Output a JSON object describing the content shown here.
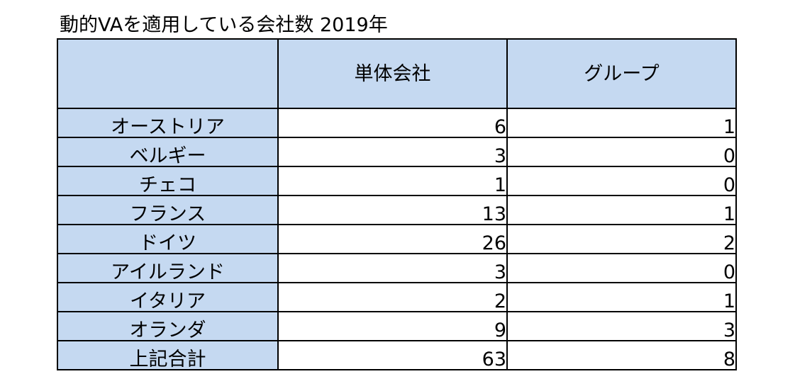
{
  "title": "動的VAを適用している会社数  2019年",
  "table": {
    "headers": [
      "",
      "単体会社",
      "グループ"
    ],
    "rows": [
      {
        "country": "オーストリア",
        "single": "6",
        "group": "1"
      },
      {
        "country": "ベルギー",
        "single": "3",
        "group": "0"
      },
      {
        "country": "チェコ",
        "single": "1",
        "group": "0"
      },
      {
        "country": "フランス",
        "single": "13",
        "group": "1"
      },
      {
        "country": "ドイツ",
        "single": "26",
        "group": "2"
      },
      {
        "country": "アイルランド",
        "single": "3",
        "group": "0"
      },
      {
        "country": "イタリア",
        "single": "2",
        "group": "1"
      },
      {
        "country": "オランダ",
        "single": "9",
        "group": "3"
      },
      {
        "country": "上記合計",
        "single": "63",
        "group": "8"
      }
    ]
  },
  "colors": {
    "header_fill": "#c5d9f1",
    "border": "#000000",
    "cell_fill": "#ffffff"
  },
  "chart_data": {
    "type": "table",
    "title": "動的VAを適用している会社数  2019年",
    "columns": [
      "単体会社",
      "グループ"
    ],
    "categories": [
      "オーストリア",
      "ベルギー",
      "チェコ",
      "フランス",
      "ドイツ",
      "アイルランド",
      "イタリア",
      "オランダ",
      "上記合計"
    ],
    "series": [
      {
        "name": "単体会社",
        "values": [
          6,
          3,
          1,
          13,
          26,
          3,
          2,
          9,
          63
        ]
      },
      {
        "name": "グループ",
        "values": [
          1,
          0,
          0,
          1,
          2,
          0,
          1,
          3,
          8
        ]
      }
    ]
  }
}
